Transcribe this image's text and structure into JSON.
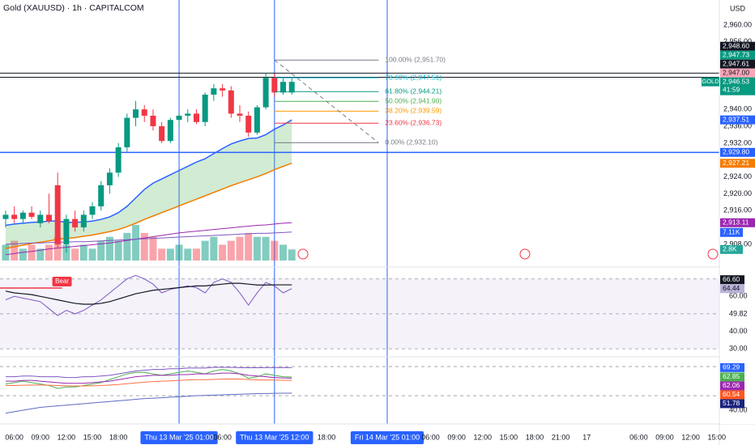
{
  "chart_data": {
    "type": "candlestick",
    "title": "Gold (XAUUSD) · 1h · CAPITALCOM",
    "currency": "USD",
    "symbol": "GOLD",
    "countdown": "41:59",
    "xlim": [
      -0.65,
      82.3
    ],
    "xticks": [
      {
        "value": 1,
        "label": "06:00"
      },
      {
        "value": 4,
        "label": "09:00"
      },
      {
        "value": 7,
        "label": "12:00"
      },
      {
        "value": 10,
        "label": "15:00"
      },
      {
        "value": 13,
        "label": "18:00"
      },
      {
        "value": 20,
        "label": "Thu 13 Mar '25  01:00",
        "highlight": true
      },
      {
        "value": 25,
        "label": "06:00"
      },
      {
        "value": 31,
        "label": "Thu 13 Mar '25  12:00",
        "highlight": true
      },
      {
        "value": 37,
        "label": "18:00"
      },
      {
        "value": 44,
        "label": "Fri 14 Mar '25  01:00",
        "highlight": true
      },
      {
        "value": 49,
        "label": "06:00"
      },
      {
        "value": 52,
        "label": "09:00"
      },
      {
        "value": 55,
        "label": "12:00"
      },
      {
        "value": 58,
        "label": "15:00"
      },
      {
        "value": 61,
        "label": "18:00"
      },
      {
        "value": 64,
        "label": "21:00"
      },
      {
        "value": 67,
        "label": "17"
      },
      {
        "value": 73,
        "label": "06:00"
      },
      {
        "value": 76,
        "label": "09:00"
      },
      {
        "value": 79,
        "label": "12:00"
      },
      {
        "value": 82,
        "label": "15:00"
      }
    ],
    "ylim": [
      2903.57,
      2965.95
    ],
    "yticks": [
      {
        "value": 2960,
        "label": "2,960.00"
      },
      {
        "value": 2956,
        "label": "2,956.00"
      },
      {
        "value": 2940,
        "label": "2,940.00"
      },
      {
        "value": 2936,
        "label": "2,936.00"
      },
      {
        "value": 2932,
        "label": "2,932.00"
      },
      {
        "value": 2924,
        "label": "2,924.00"
      },
      {
        "value": 2920,
        "label": "2,920.00"
      },
      {
        "value": 2916,
        "label": "2,916.00"
      },
      {
        "value": 2908,
        "label": "2,908.00"
      }
    ],
    "up_color": "#089981",
    "down_color": "#f23645",
    "open": [
      2914,
      2915,
      2914,
      2915.5,
      2913,
      2915,
      2922,
      2908,
      2914,
      2912,
      2915,
      2917,
      2922,
      2925,
      2931,
      2938,
      2940,
      2938.5,
      2936,
      2932.5,
      2937.5,
      2938.5,
      2939,
      2937,
      2943.5,
      2945,
      2944.5,
      2939,
      2938.5,
      2934.5,
      2940.5,
      2947.5,
      2944,
      2944
    ],
    "high": [
      2916,
      2917,
      2916,
      2917,
      2916,
      2920,
      2925,
      2915,
      2916,
      2916,
      2918,
      2923,
      2926,
      2932,
      2939,
      2942,
      2941,
      2940,
      2937,
      2938,
      2939,
      2940,
      2940,
      2944,
      2946,
      2946,
      2945.5,
      2941,
      2939.5,
      2941,
      2948.6,
      2948.5,
      2947.7,
      2947.7
    ],
    "low": [
      2912,
      2913,
      2913,
      2914,
      2912,
      2913,
      2907,
      2906,
      2911,
      2911,
      2914,
      2916,
      2920,
      2924,
      2930,
      2936,
      2937,
      2935,
      2932,
      2932,
      2936,
      2937,
      2936.5,
      2936,
      2942,
      2943,
      2938,
      2937,
      2933.5,
      2934,
      2940,
      2943,
      2943.5,
      2943.5
    ],
    "close": [
      2915,
      2914,
      2915.5,
      2914.5,
      2915,
      2913.5,
      2908,
      2914,
      2912,
      2915,
      2917,
      2922,
      2925,
      2931,
      2938,
      2940,
      2938.5,
      2936,
      2932.5,
      2937.5,
      2938.5,
      2939,
      2937,
      2943.5,
      2945,
      2944.5,
      2939,
      2938.5,
      2934.5,
      2940.5,
      2947.5,
      2944,
      2946.53,
      2946.53
    ],
    "volume_lim": [
      0,
      66
    ],
    "volume": [
      4,
      5,
      3,
      4,
      3,
      4,
      6,
      4,
      3,
      4,
      3,
      5,
      6,
      5,
      7,
      9,
      7,
      6,
      3,
      3,
      4,
      3,
      3,
      5,
      6,
      4,
      5,
      6,
      7,
      6,
      6,
      5,
      4,
      2.8
    ],
    "volume_up_color": "rgba(8,153,129,0.5)",
    "volume_down_color": "rgba(242,54,69,0.45)",
    "volume_labels": [
      {
        "value": 7.11,
        "label": "7.11K",
        "color": "#2962ff"
      },
      {
        "value": 2.8,
        "label": "2.8K",
        "color": "#26a69a"
      }
    ],
    "overlays": [
      {
        "color": "#2962ff",
        "width": 1.5,
        "values": [
          2912.5,
          2912.8,
          2913,
          2913.2,
          2913.3,
          2913.5,
          2913.5,
          2913.2,
          2913.2,
          2913.3,
          2913.5,
          2913.9,
          2914.5,
          2915.5,
          2917,
          2919,
          2921,
          2922.5,
          2923.5,
          2924.5,
          2925.5,
          2926.5,
          2927.5,
          2928.3,
          2929.5,
          2930.7,
          2931.8,
          2932.5,
          2933.1,
          2933.2,
          2934,
          2935.3,
          2936.3,
          2937.51
        ]
      },
      {
        "color": "#f57c00",
        "width": 1.5,
        "values": [
          2907,
          2907.4,
          2907.8,
          2908.2,
          2908.5,
          2908.8,
          2909.2,
          2909.4,
          2909.6,
          2909.9,
          2910.2,
          2910.6,
          2911,
          2911.5,
          2912.2,
          2913,
          2913.9,
          2914.7,
          2915.5,
          2916.3,
          2917.1,
          2917.9,
          2918.7,
          2919.5,
          2920.3,
          2921.1,
          2921.9,
          2922.6,
          2923.3,
          2924,
          2924.8,
          2925.7,
          2926.5,
          2927.21
        ]
      },
      {
        "color": "#9c27b0",
        "width": 1,
        "values": [
          2905.5,
          2905.8,
          2906.1,
          2906.3,
          2906.6,
          2906.9,
          2907.1,
          2907.3,
          2907.5,
          2907.7,
          2907.9,
          2908.1,
          2908.3,
          2908.6,
          2908.9,
          2909.2,
          2909.5,
          2909.8,
          2910.1,
          2910.4,
          2910.7,
          2910.9,
          2911.1,
          2911.3,
          2911.5,
          2911.7,
          2911.9,
          2912.1,
          2912.3,
          2912.5,
          2912.6,
          2912.8,
          2913.0,
          2913.11
        ]
      },
      {
        "color": "#7e57c2",
        "width": 1,
        "values": [
          2908.0,
          2908.1,
          2908.2,
          2908.3,
          2908.3,
          2908.4,
          2908.5,
          2908.5,
          2908.6,
          2908.6,
          2908.7,
          2908.8,
          2908.9,
          2909.0,
          2909.1,
          2909.2,
          2909.3,
          2909.4,
          2909.5,
          2909.6,
          2909.7,
          2909.8,
          2909.9,
          2910.0,
          2910.1,
          2910.2,
          2910.3,
          2910.4,
          2910.5,
          2910.6,
          2910.6,
          2910.7,
          2910.8,
          2910.9
        ]
      }
    ],
    "fill_between": [
      0,
      1
    ],
    "fill_color": "rgba(76,175,80,0.25)",
    "price_labels": [
      {
        "value": 2948.6,
        "label": "2,948.60",
        "color": "#131722",
        "line": true
      },
      {
        "value": 2947.73,
        "label": "2,947.73",
        "color": "#089981"
      },
      {
        "value": 2947.61,
        "label": "2,947.61",
        "color": "#131722",
        "line": true
      },
      {
        "value": 2947.0,
        "label": "2,947.00",
        "color": "#f8a5b8"
      },
      {
        "value": 2946.53,
        "label": "2,946.53",
        "color": "#089981",
        "current": true
      },
      {
        "value": 2937.51,
        "label": "2,937.51",
        "color": "#2962ff"
      },
      {
        "value": 2929.8,
        "label": "2,929.80",
        "color": "#2962ff",
        "line": true
      },
      {
        "value": 2927.21,
        "label": "2,927.21",
        "color": "#f57c00"
      },
      {
        "value": 2913.11,
        "label": "2,913.11",
        "color": "#9c27b0"
      }
    ],
    "label_stack": "up",
    "fib": {
      "x": [
        31,
        43
      ],
      "levels": [
        {
          "value": 2951.7,
          "label": "100.00% (2,951.70)",
          "color": "#787b86"
        },
        {
          "value": 2947.51,
          "label": "78.60% (2,947.51)",
          "color": "#00bcd4"
        },
        {
          "value": 2944.21,
          "label": "61.80% (2,944.21)",
          "color": "#089981"
        },
        {
          "value": 2941.9,
          "label": "50.00% (2,941.90)",
          "color": "#4caf50"
        },
        {
          "value": 2939.59,
          "label": "38.20% (2,939.59)",
          "color": "#ff9800"
        },
        {
          "value": 2936.73,
          "label": "23.60% (2,936.73)",
          "color": "#f23645"
        },
        {
          "value": 2932.1,
          "label": "0.00% (2,932.10)",
          "color": "#787b86"
        }
      ]
    },
    "panes": [
      {
        "ylim": [
          26.8,
          74.5
        ],
        "yticks": [
          {
            "value": 60,
            "label": "60.00"
          },
          {
            "value": 49.82,
            "label": "49.82"
          },
          {
            "value": 40,
            "label": "40.00"
          },
          {
            "value": 30,
            "label": "30.00"
          }
        ],
        "levels": [
          70,
          50,
          30
        ],
        "band": [
          70,
          30
        ],
        "band_color": "rgba(126,87,194,0.08)",
        "series": [
          {
            "color": "#7e57c2",
            "width": 1,
            "values": [
              58,
              60,
              59,
              58,
              57,
              53,
              49,
              52,
              50,
              52,
              55,
              58,
              62,
              66,
              70,
              72,
              70,
              67,
              62,
              64,
              65,
              66,
              65,
              62,
              68,
              70,
              68,
              62,
              55,
              62,
              68,
              66,
              62,
              64.44
            ]
          },
          {
            "color": "#131722",
            "width": 1.2,
            "values": [
              63,
              62,
              61.5,
              61,
              60,
              59,
              58,
              57,
              56,
              55.5,
              55.5,
              56,
              57,
              58.5,
              60,
              61.5,
              62.5,
              63.5,
              64,
              64.5,
              65,
              65.5,
              66,
              66,
              66.5,
              67,
              67.5,
              67.5,
              67,
              66.5,
              66.5,
              66.6,
              66.6,
              66.6
            ]
          }
        ],
        "labels": [
          {
            "value": 66.6,
            "label": "66.60",
            "color": "#131722"
          },
          {
            "value": 64.44,
            "label": "64.44",
            "color": "#b8b2d6"
          }
        ],
        "label_stack": "up",
        "annotations": [
          {
            "text": "Bear",
            "x": 6.5,
            "value": 64.8,
            "color": "#f23645"
          }
        ]
      },
      {
        "ylim": [
          32.8,
          75.6
        ],
        "yticks": [
          {
            "value": 40,
            "label": "40.00"
          }
        ],
        "levels": [
          70,
          50
        ],
        "series": [
          {
            "color": "#7e57c2",
            "width": 1,
            "values": [
              63,
              63,
              63.5,
              63.5,
              63,
              63,
              63,
              62.5,
              62.5,
              63,
              63,
              63.5,
              64,
              65,
              66,
              67,
              67.5,
              68,
              68,
              68.5,
              68.5,
              69,
              69,
              69,
              69.5,
              69.5,
              69.5,
              69.3,
              69.2,
              69.2,
              69.3,
              69.3,
              69.3,
              69.29
            ]
          },
          {
            "color": "#4caf50",
            "width": 1,
            "values": [
              58,
              59,
              60,
              59,
              58,
              57,
              55,
              56,
              56,
              57,
              58,
              59,
              61,
              63,
              65,
              66,
              66,
              65,
              64,
              65,
              66,
              67,
              66,
              65,
              67,
              68,
              67,
              65,
              62,
              63,
              65,
              64,
              63,
              62.85
            ]
          },
          {
            "color": "#9c27b0",
            "width": 1,
            "values": [
              60,
              60,
              60.5,
              60.5,
              60,
              59.5,
              59,
              58.5,
              58.5,
              58.5,
              59,
              59.5,
              60,
              61,
              62,
              63,
              63.5,
              64,
              64,
              64,
              64.5,
              64.5,
              65,
              65,
              65,
              65.5,
              65.5,
              65,
              64,
              63.5,
              63,
              62.5,
              62.2,
              62.06
            ]
          },
          {
            "color": "#ff7043",
            "width": 1,
            "values": [
              57,
              57,
              57.2,
              57.3,
              57.3,
              57.2,
              57,
              56.8,
              56.7,
              56.7,
              56.8,
              57,
              57.3,
              57.7,
              58.2,
              58.8,
              59.3,
              59.7,
              60,
              60.2,
              60.5,
              60.8,
              61,
              61,
              61.2,
              61.4,
              61.5,
              61.4,
              61.1,
              60.9,
              60.8,
              60.7,
              60.6,
              60.54
            ]
          },
          {
            "color": "#5c6bc0",
            "width": 1,
            "values": [
              38,
              39,
              40,
              41,
              42,
              42.5,
              43,
              43.5,
              44,
              44.5,
              45,
              45.5,
              46,
              46.5,
              47,
              47.5,
              48,
              48.3,
              48.6,
              49,
              49.3,
              49.6,
              50,
              50.2,
              50.4,
              50.6,
              50.8,
              51,
              51.2,
              51.4,
              51.5,
              51.6,
              51.7,
              51.78
            ]
          }
        ],
        "labels": [
          {
            "value": 69.29,
            "label": "69.29",
            "color": "#2962ff"
          },
          {
            "value": 62.85,
            "label": "62.85",
            "color": "#4caf50"
          },
          {
            "value": 62.06,
            "label": "62.06",
            "color": "#9c27b0"
          },
          {
            "value": 60.54,
            "label": "60.54",
            "color": "#ff5722"
          },
          {
            "value": 51.78,
            "label": "51.78",
            "color": "#1a237e"
          }
        ],
        "label_stack": "down"
      }
    ]
  }
}
